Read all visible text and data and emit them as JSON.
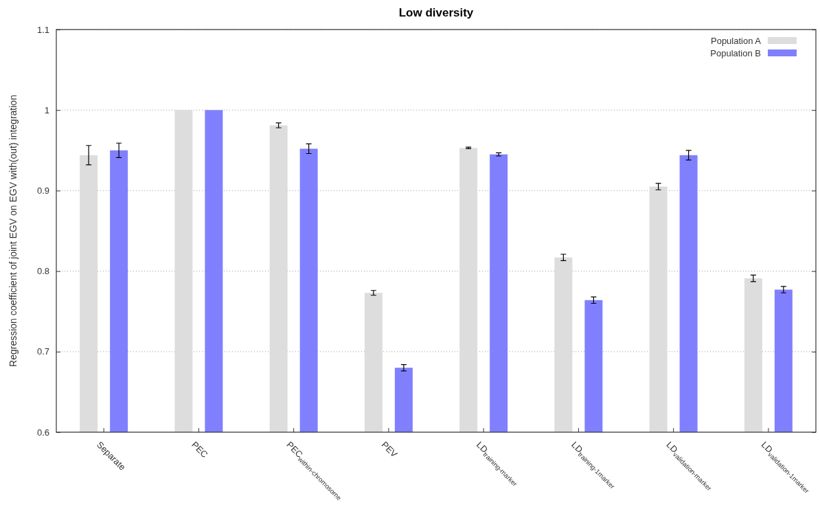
{
  "chart_data": {
    "type": "bar",
    "title": "Low diversity",
    "ylabel": "Regression coefficient of joint EGV on EGV with(out) integration",
    "categories": [
      "Separate",
      "PEC",
      "PEC$_{within-chromosome}$",
      "PEV",
      "LD$_{training-marker}$",
      "LD$_{training-1marker}$",
      "LD$_{validation-marker}$",
      "LD$_{validation-1marker}$"
    ],
    "series": [
      {
        "name": "Population A",
        "color": "#dddddd",
        "values": [
          0.944,
          1.0,
          0.981,
          0.773,
          0.953,
          0.817,
          0.905,
          0.791
        ],
        "errors": [
          0.012,
          null,
          0.003,
          0.003,
          0.001,
          0.004,
          0.004,
          0.004
        ]
      },
      {
        "name": "Population B",
        "color": "#8080ff",
        "values": [
          0.95,
          1.0,
          0.952,
          0.68,
          0.945,
          0.764,
          0.944,
          0.777
        ],
        "errors": [
          0.009,
          null,
          0.006,
          0.004,
          0.002,
          0.004,
          0.006,
          0.004
        ]
      }
    ],
    "ylim": [
      0.6,
      1.1
    ],
    "yticks": [
      {
        "value": 0.6,
        "label": "0.6"
      },
      {
        "value": 0.7,
        "label": "0.7"
      },
      {
        "value": 0.8,
        "label": "0.8"
      },
      {
        "value": 0.9,
        "label": "0.9"
      },
      {
        "value": 1.0,
        "label": "1"
      },
      {
        "value": 1.1,
        "label": "1.1"
      }
    ],
    "grid": "y",
    "legend": "top right"
  }
}
